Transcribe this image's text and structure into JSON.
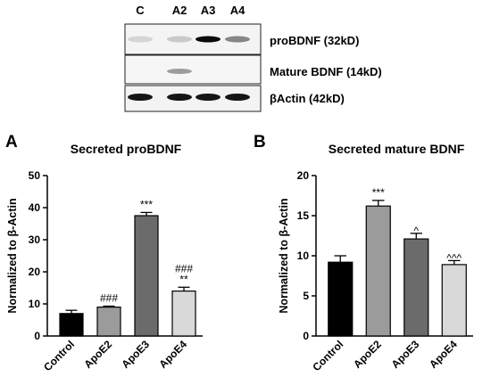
{
  "western_blot": {
    "lanes": [
      "C",
      "A2",
      "A3",
      "A4"
    ],
    "rows": [
      {
        "label": "proBDNF (32kD)",
        "intensity": [
          0.1,
          0.15,
          1.0,
          0.45
        ]
      },
      {
        "label": "Mature BDNF (14kD)",
        "intensity": [
          0.0,
          0.35,
          0.0,
          0.0
        ]
      },
      {
        "label": "βActin (42kD)",
        "intensity": [
          0.95,
          0.95,
          0.95,
          0.95
        ]
      }
    ]
  },
  "chart_data": [
    {
      "panel": "A",
      "type": "bar",
      "title": "Secreted proBDNF",
      "ylabel": "Normalized to β-Actin",
      "xlabel": "",
      "categories": [
        "Control",
        "ApoE2",
        "ApoE3",
        "ApoE4"
      ],
      "values": [
        7,
        9,
        37.5,
        14
      ],
      "errors": [
        1.0,
        0.3,
        1.0,
        1.2
      ],
      "ylim": [
        0,
        50
      ],
      "yticks": [
        0,
        10,
        20,
        30,
        40,
        50
      ],
      "colors": [
        "#000000",
        "#9b9b9b",
        "#6b6b6b",
        "#d9d9d9"
      ],
      "annotations": [
        {
          "category": "ApoE2",
          "lines": [
            "###"
          ]
        },
        {
          "category": "ApoE3",
          "lines": [
            "***"
          ]
        },
        {
          "category": "ApoE4",
          "lines": [
            "###",
            "**"
          ]
        }
      ]
    },
    {
      "panel": "B",
      "type": "bar",
      "title": "Secreted mature BDNF",
      "ylabel": "Normalized to β-Actin",
      "xlabel": "",
      "categories": [
        "Control",
        "ApoE2",
        "ApoE3",
        "ApoE4"
      ],
      "values": [
        9.2,
        16.2,
        12.1,
        8.9
      ],
      "errors": [
        0.8,
        0.7,
        0.7,
        0.5
      ],
      "ylim": [
        0,
        20
      ],
      "yticks": [
        0,
        5,
        10,
        15,
        20
      ],
      "colors": [
        "#000000",
        "#9b9b9b",
        "#6b6b6b",
        "#d9d9d9"
      ],
      "annotations": [
        {
          "category": "ApoE2",
          "lines": [
            "***"
          ]
        },
        {
          "category": "ApoE3",
          "lines": [
            "^"
          ]
        },
        {
          "category": "ApoE4",
          "lines": [
            "^^^"
          ]
        }
      ]
    }
  ]
}
